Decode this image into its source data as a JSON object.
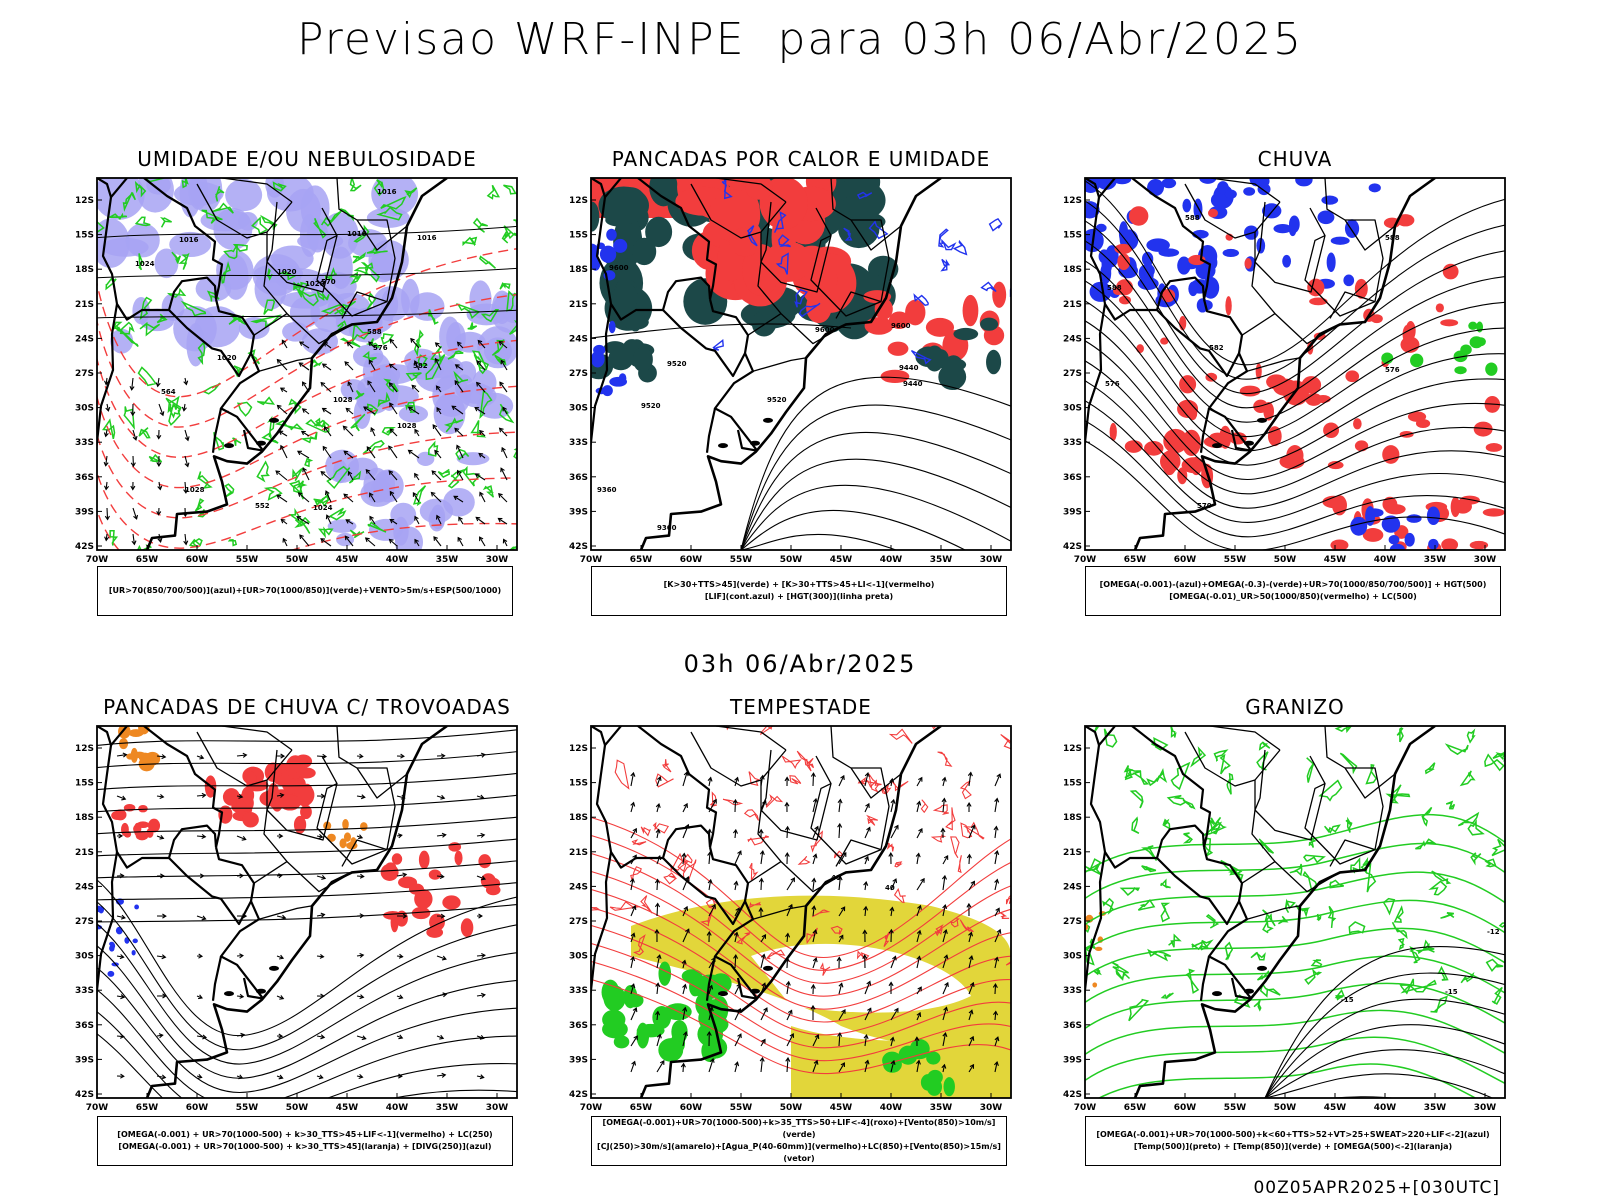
{
  "header": {
    "title": "Previsao WRF-INPE  para 03h 06/Abr/2025",
    "mid_title": "03h 06/Abr/2025"
  },
  "axes": {
    "lat_labels": [
      "12S",
      "15S",
      "18S",
      "21S",
      "24S",
      "27S",
      "30S",
      "33S",
      "36S",
      "39S",
      "42S"
    ],
    "lon_labels": [
      "70W",
      "65W",
      "60W",
      "55W",
      "50W",
      "45W",
      "40W",
      "35W",
      "30W"
    ]
  },
  "colors": {
    "map_lines": "#000000",
    "purple_humidity": "#a7a3f3",
    "green": "#22cc22",
    "red": "#f23d3d",
    "dark_teal": "#1c4848",
    "blue": "#2233ee",
    "orange": "#ee8822",
    "yellow": "#e2d63a"
  },
  "panels": [
    {
      "id": "umidade",
      "title": "UMIDADE E/OU NEBULOSIDADE",
      "legend": [
        "[UR>70(850/700/500)](azul)+[UR>70(1000/850)](verde)+VENTO>5m/s+ESP(500/1000)"
      ],
      "contour_labels": [
        "1016",
        "1016",
        "1016",
        "1016",
        "1020",
        "1020",
        "1020",
        "1024",
        "1024",
        "1028",
        "1028",
        "1028",
        "564",
        "570",
        "576",
        "582",
        "588",
        "552"
      ]
    },
    {
      "id": "pancadas_calor",
      "title": "PANCADAS POR CALOR E UMIDADE",
      "legend": [
        "[K>30+TTS>45](verde) + [K>30+TTS>45+LI<-1](vermelho)",
        "[LIF](cont.azul) + [HGT(300)](linha preta)"
      ],
      "contour_labels": [
        "9600",
        "9600",
        "9600",
        "9520",
        "9520",
        "9520",
        "9440",
        "9440",
        "9360",
        "9360"
      ]
    },
    {
      "id": "chuva",
      "title": "CHUVA",
      "legend": [
        "[OMEGA(-0.001)-(azul)+OMEGA(-0.3)-(verde)+UR>70(1000/850/700/500)] + HGT(500)",
        "[OMEGA(-0.01)_UR>50(1000/850)(vermelho) + LC(500)"
      ],
      "contour_labels": [
        "588",
        "588",
        "588",
        "582",
        "582",
        "576",
        "576",
        "570"
      ]
    },
    {
      "id": "trovoadas",
      "title": "PANCADAS DE CHUVA C/ TROVOADAS",
      "legend": [
        "[OMEGA(-0.001) + UR>70(1000-500) + k>30_TTS>45+LIF<-1](vermelho) + LC(250)",
        "[OMEGA(-0.001) + UR>70(1000-500) + k>30_TTS>45](laranja) + [DIVG(250)](azul)"
      ],
      "contour_labels": []
    },
    {
      "id": "tempestade",
      "title": "TEMPESTADE",
      "legend": [
        "[OMEGA(-0.001)+UR>70(1000-500)+k>35_TTS>50+LIF<-4](roxo)+[Vento(850)>10m/s](verde)",
        "[CJ(250)>30m/s](amarelo)+[Agua_P(40-60mm)](vermelho)+LC(850)+[Vento(850)>15m/s](vetor)"
      ],
      "contour_labels": [
        "40",
        "40"
      ]
    },
    {
      "id": "granizo",
      "title": "GRANIZO",
      "legend": [
        "[OMEGA(-0.001)+UR>70(1000-500)+k<60+TTS>52+VT>25+SWEAT>220+LIF<-2](azul)",
        "[Temp(500)](preto) + [Temp(850)](verde) + [OMEGA(500)<-2](laranja)"
      ],
      "contour_labels": [
        "-12",
        "-15",
        "-15"
      ]
    }
  ],
  "footer": {
    "run_label": "00Z05APR2025+[030UTC]"
  }
}
